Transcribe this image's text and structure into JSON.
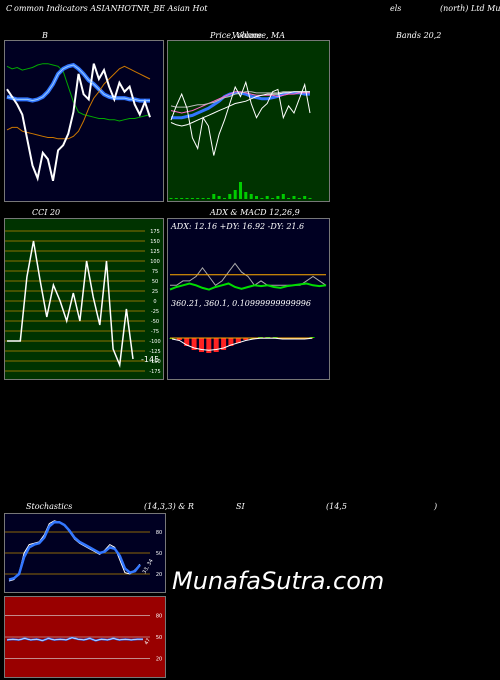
{
  "header": {
    "title_parts": [
      "C",
      "ommon  Indicators ASIANHOTNR_BE Asian  Hot",
      "els",
      "(north) Ltd Munafa"
    ]
  },
  "panels": {
    "bollinger": {
      "title": "B",
      "title_right": "Bands 20,2"
    },
    "price": {
      "title": "Price, Volume, MA",
      "overlap": "Volume"
    },
    "cci": {
      "title": "CCI 20",
      "value_label": "-145"
    },
    "adx": {
      "title": "ADX  & MACD 12,26,9",
      "adx_line": "ADX: 12.16  +DY: 16.92  -DY: 21.6",
      "macd_line": "360.21,  360.1,  0.10999999999996"
    },
    "stoch": {
      "title": "Stochastics",
      "params": "(14,3,3) & R",
      "mid": "SI",
      "rsi_params": "(14,5",
      "close": ")",
      "value_label": "33, 34"
    },
    "rsi": {
      "value_label": "47"
    }
  },
  "watermark": "MunafaSutra.com",
  "colors": {
    "navy": "#000022",
    "green": "#003300",
    "red": "#990000",
    "blue": "#3377ff",
    "olive": "#008800"
  },
  "chart_data": [
    {
      "type": "line",
      "name": "bollinger",
      "series": [
        {
          "values": [
            98,
            96,
            97,
            95,
            96,
            97,
            99,
            100,
            100,
            99,
            98,
            94,
            82,
            70,
            62,
            60,
            59,
            58,
            57,
            57,
            56,
            56,
            55,
            56,
            57,
            57,
            58,
            59,
            60
          ]
        },
        {
          "values": [
            74,
            73,
            72,
            72,
            72,
            71,
            72,
            74,
            78,
            84,
            92,
            96,
            98,
            99,
            96,
            92,
            87,
            84,
            80,
            76,
            74,
            73,
            73,
            73,
            72,
            72,
            71,
            71,
            71
          ]
        },
        {
          "values": [
            48,
            50,
            50,
            47,
            46,
            45,
            44,
            43,
            42,
            42,
            41,
            41,
            41,
            43,
            47,
            55,
            65,
            73,
            78,
            84,
            88,
            92,
            96,
            98,
            96,
            94,
            92,
            90,
            88
          ]
        },
        {
          "values": [
            80,
            74,
            68,
            60,
            40,
            20,
            10,
            30,
            25,
            8,
            32,
            36,
            45,
            62,
            92,
            76,
            72,
            100,
            88,
            95,
            82,
            72,
            85,
            78,
            82,
            68,
            60,
            70,
            58
          ]
        }
      ]
    },
    {
      "type": "line",
      "name": "price-ma",
      "series": [
        {
          "values": [
            62,
            62,
            62,
            63,
            64,
            66,
            68,
            70,
            73,
            76,
            80,
            82,
            83,
            83,
            82,
            80,
            79,
            78,
            78,
            79,
            80,
            82,
            83,
            83,
            83,
            82,
            82
          ]
        },
        {
          "values": [
            68,
            67,
            66,
            67,
            68,
            70,
            72,
            74,
            76,
            78,
            80,
            82,
            84,
            84,
            83,
            82,
            81,
            81,
            81,
            81,
            80,
            81,
            82,
            82,
            83,
            83,
            83
          ]
        },
        {
          "values": [
            72,
            71,
            71,
            71,
            72,
            73,
            73,
            74,
            75,
            77,
            79,
            80,
            82,
            83,
            84,
            84,
            83,
            83,
            83,
            83,
            83,
            84,
            84,
            84,
            84,
            84,
            84
          ]
        },
        {
          "values": [
            58,
            56,
            55,
            56,
            58,
            60,
            62,
            64,
            66,
            68,
            70,
            72,
            74,
            75,
            76,
            78,
            80,
            81,
            82,
            82,
            82,
            83,
            83,
            84,
            84,
            84,
            84
          ]
        },
        {
          "values": [
            60,
            72,
            82,
            70,
            45,
            36,
            62,
            55,
            30,
            48,
            60,
            74,
            88,
            80,
            92,
            74,
            62,
            70,
            74,
            84,
            86,
            62,
            72,
            66,
            78,
            90,
            66
          ]
        },
        {
          "values": [
            0,
            0,
            0,
            0,
            0,
            0,
            0,
            0,
            2,
            1,
            0,
            2,
            4,
            8,
            3,
            2,
            1,
            0,
            1,
            0,
            1,
            2,
            0,
            1,
            0,
            1,
            0
          ]
        }
      ]
    },
    {
      "type": "line",
      "name": "cci",
      "ylim": [
        -175,
        175
      ],
      "ticks": [
        175,
        150,
        125,
        100,
        75,
        50,
        25,
        0,
        -25,
        -50,
        -75,
        -100,
        -125,
        -150,
        -175
      ],
      "series": [
        {
          "values": [
            -100,
            -100,
            -100,
            60,
            150,
            50,
            -40,
            40,
            0,
            -50,
            20,
            -50,
            100,
            10,
            -60,
            100,
            -120,
            -160,
            -20,
            -145
          ]
        }
      ]
    },
    {
      "type": "line",
      "name": "adx-macd",
      "series": [
        {
          "values": [
            0,
            0,
            5,
            5,
            10,
            20,
            10,
            0,
            5,
            15,
            25,
            15,
            10,
            0,
            5,
            0,
            0,
            0,
            0,
            0,
            0,
            5,
            10,
            5,
            0
          ]
        },
        {
          "values": [
            12,
            12,
            12,
            12,
            12,
            12,
            12,
            12,
            12,
            12,
            12,
            12,
            12,
            12,
            12,
            12,
            12,
            12,
            12,
            12,
            12,
            12,
            12,
            12,
            12
          ]
        },
        {
          "values": [
            -5,
            -2,
            0,
            2,
            0,
            -3,
            -5,
            -2,
            0,
            2,
            -2,
            -4,
            -2,
            0,
            -1,
            0,
            -2,
            -3,
            -1,
            0,
            1,
            2,
            0,
            -1,
            0
          ]
        },
        {
          "values": [
            0,
            -0.2,
            -0.8,
            -1.2,
            -1.4,
            -1.5,
            -1.4,
            -1.2,
            -0.8,
            -0.5,
            -0.2,
            0,
            0.1,
            0.1,
            0.1,
            0,
            0,
            0,
            0,
            0.1
          ]
        }
      ]
    },
    {
      "type": "line",
      "name": "stochastics",
      "ylim": [
        0,
        100
      ],
      "ticks": [
        80,
        50,
        20
      ],
      "series": [
        {
          "values": [
            10,
            12,
            22,
            50,
            62,
            64,
            66,
            76,
            92,
            96,
            94,
            90,
            80,
            70,
            64,
            60,
            56,
            52,
            48,
            54,
            62,
            58,
            40,
            22,
            20,
            26,
            34
          ]
        },
        {
          "values": [
            12,
            14,
            20,
            44,
            58,
            62,
            64,
            72,
            88,
            94,
            94,
            90,
            82,
            72,
            66,
            62,
            58,
            54,
            50,
            52,
            58,
            56,
            46,
            28,
            22,
            24,
            33
          ]
        }
      ]
    },
    {
      "type": "line",
      "name": "rsi",
      "ylim": [
        0,
        100
      ],
      "ticks": [
        80,
        50,
        20
      ],
      "series": [
        {
          "values": [
            46,
            47,
            46,
            48,
            46,
            47,
            45,
            48,
            46,
            47,
            46,
            49,
            47,
            46,
            48,
            45,
            47,
            46,
            48,
            46,
            47,
            46,
            47,
            47
          ]
        }
      ]
    }
  ]
}
